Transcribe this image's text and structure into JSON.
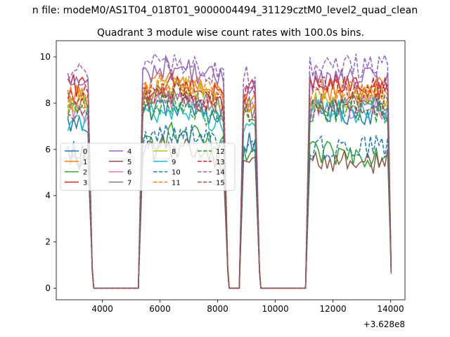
{
  "chart_data": {
    "type": "line",
    "suptitle": "n file: modeM0/AS1T04_018T01_9000004494_31129cztM0_level2_quad_clean",
    "title": "Quadrant 3 module wise count rates with 100.0s bins.",
    "xlabel": "",
    "ylabel": "",
    "x_offset_label": "+3.628e8",
    "xlim": [
      2400,
      14500
    ],
    "ylim": [
      -0.5,
      10.7
    ],
    "xticks": [
      4000,
      6000,
      8000,
      10000,
      12000,
      14000
    ],
    "xtick_labels": [
      "4000",
      "6000",
      "8000",
      "10000",
      "12000",
      "14000"
    ],
    "yticks": [
      0,
      2,
      4,
      6,
      8,
      10
    ],
    "ytick_labels": [
      "0",
      "2",
      "4",
      "6",
      "8",
      "10"
    ],
    "grid": false,
    "legend_position": "center-left",
    "legend_columns": 4,
    "bin_seconds": 100,
    "segments": [
      {
        "start": 2800,
        "end": 3500
      },
      {
        "start": 5400,
        "end": 8200
      },
      {
        "start": 8900,
        "end": 9300
      },
      {
        "start": 11200,
        "end": 13900
      }
    ],
    "series": [
      {
        "name": "0",
        "color": "#1f77b4",
        "dash": "solid",
        "level_a": 7.1,
        "level_b": 7.6,
        "level_c": 6.3,
        "level_d": 7.6
      },
      {
        "name": "1",
        "color": "#ff7f0e",
        "dash": "solid",
        "level_a": 8.3,
        "level_b": 8.6,
        "level_c": 8.3,
        "level_d": 8.6
      },
      {
        "name": "2",
        "color": "#2ca02c",
        "dash": "solid",
        "level_a": 5.6,
        "level_b": 6.3,
        "level_c": 5.8,
        "level_d": 5.8
      },
      {
        "name": "3",
        "color": "#d62728",
        "dash": "solid",
        "level_a": 8.7,
        "level_b": 8.4,
        "level_c": 8.5,
        "level_d": 8.7
      },
      {
        "name": "4",
        "color": "#9467bd",
        "dash": "solid",
        "level_a": 8.9,
        "level_b": 9.2,
        "level_c": 8.9,
        "level_d": 9.0
      },
      {
        "name": "5",
        "color": "#8c564b",
        "dash": "solid",
        "level_a": 5.7,
        "level_b": 5.8,
        "level_c": 5.6,
        "level_d": 5.5
      },
      {
        "name": "6",
        "color": "#e377c2",
        "dash": "solid",
        "level_a": 7.6,
        "level_b": 7.9,
        "level_c": 7.7,
        "level_d": 7.8
      },
      {
        "name": "7",
        "color": "#7f7f7f",
        "dash": "solid",
        "level_a": 7.9,
        "level_b": 8.1,
        "level_c": 7.8,
        "level_d": 8.0
      },
      {
        "name": "8",
        "color": "#bcbd22",
        "dash": "solid",
        "level_a": 8.1,
        "level_b": 8.3,
        "level_c": 7.9,
        "level_d": 8.2
      },
      {
        "name": "9",
        "color": "#17becf",
        "dash": "solid",
        "level_a": 7.3,
        "level_b": 7.4,
        "level_c": 7.0,
        "level_d": 7.7
      },
      {
        "name": "10",
        "color": "#1f77b4",
        "dash": "dashed",
        "level_a": 5.9,
        "level_b": 6.4,
        "level_c": 5.9,
        "level_d": 6.1
      },
      {
        "name": "11",
        "color": "#ff7f0e",
        "dash": "dashed",
        "level_a": 8.2,
        "level_b": 8.5,
        "level_c": 8.1,
        "level_d": 8.4
      },
      {
        "name": "12",
        "color": "#2ca02c",
        "dash": "dashed",
        "level_a": 7.7,
        "level_b": 7.6,
        "level_c": 7.3,
        "level_d": 7.7
      },
      {
        "name": "13",
        "color": "#d62728",
        "dash": "dashed",
        "level_a": 8.5,
        "level_b": 8.2,
        "level_c": 8.4,
        "level_d": 8.6
      },
      {
        "name": "14",
        "color": "#9467bd",
        "dash": "dashed",
        "level_a": 9.3,
        "level_b": 9.4,
        "level_c": 9.2,
        "level_d": 9.6
      },
      {
        "name": "15",
        "color": "#8c564b",
        "dash": "dashed",
        "level_a": 7.8,
        "level_b": 8.0,
        "level_c": 7.5,
        "level_d": 7.9
      }
    ]
  }
}
